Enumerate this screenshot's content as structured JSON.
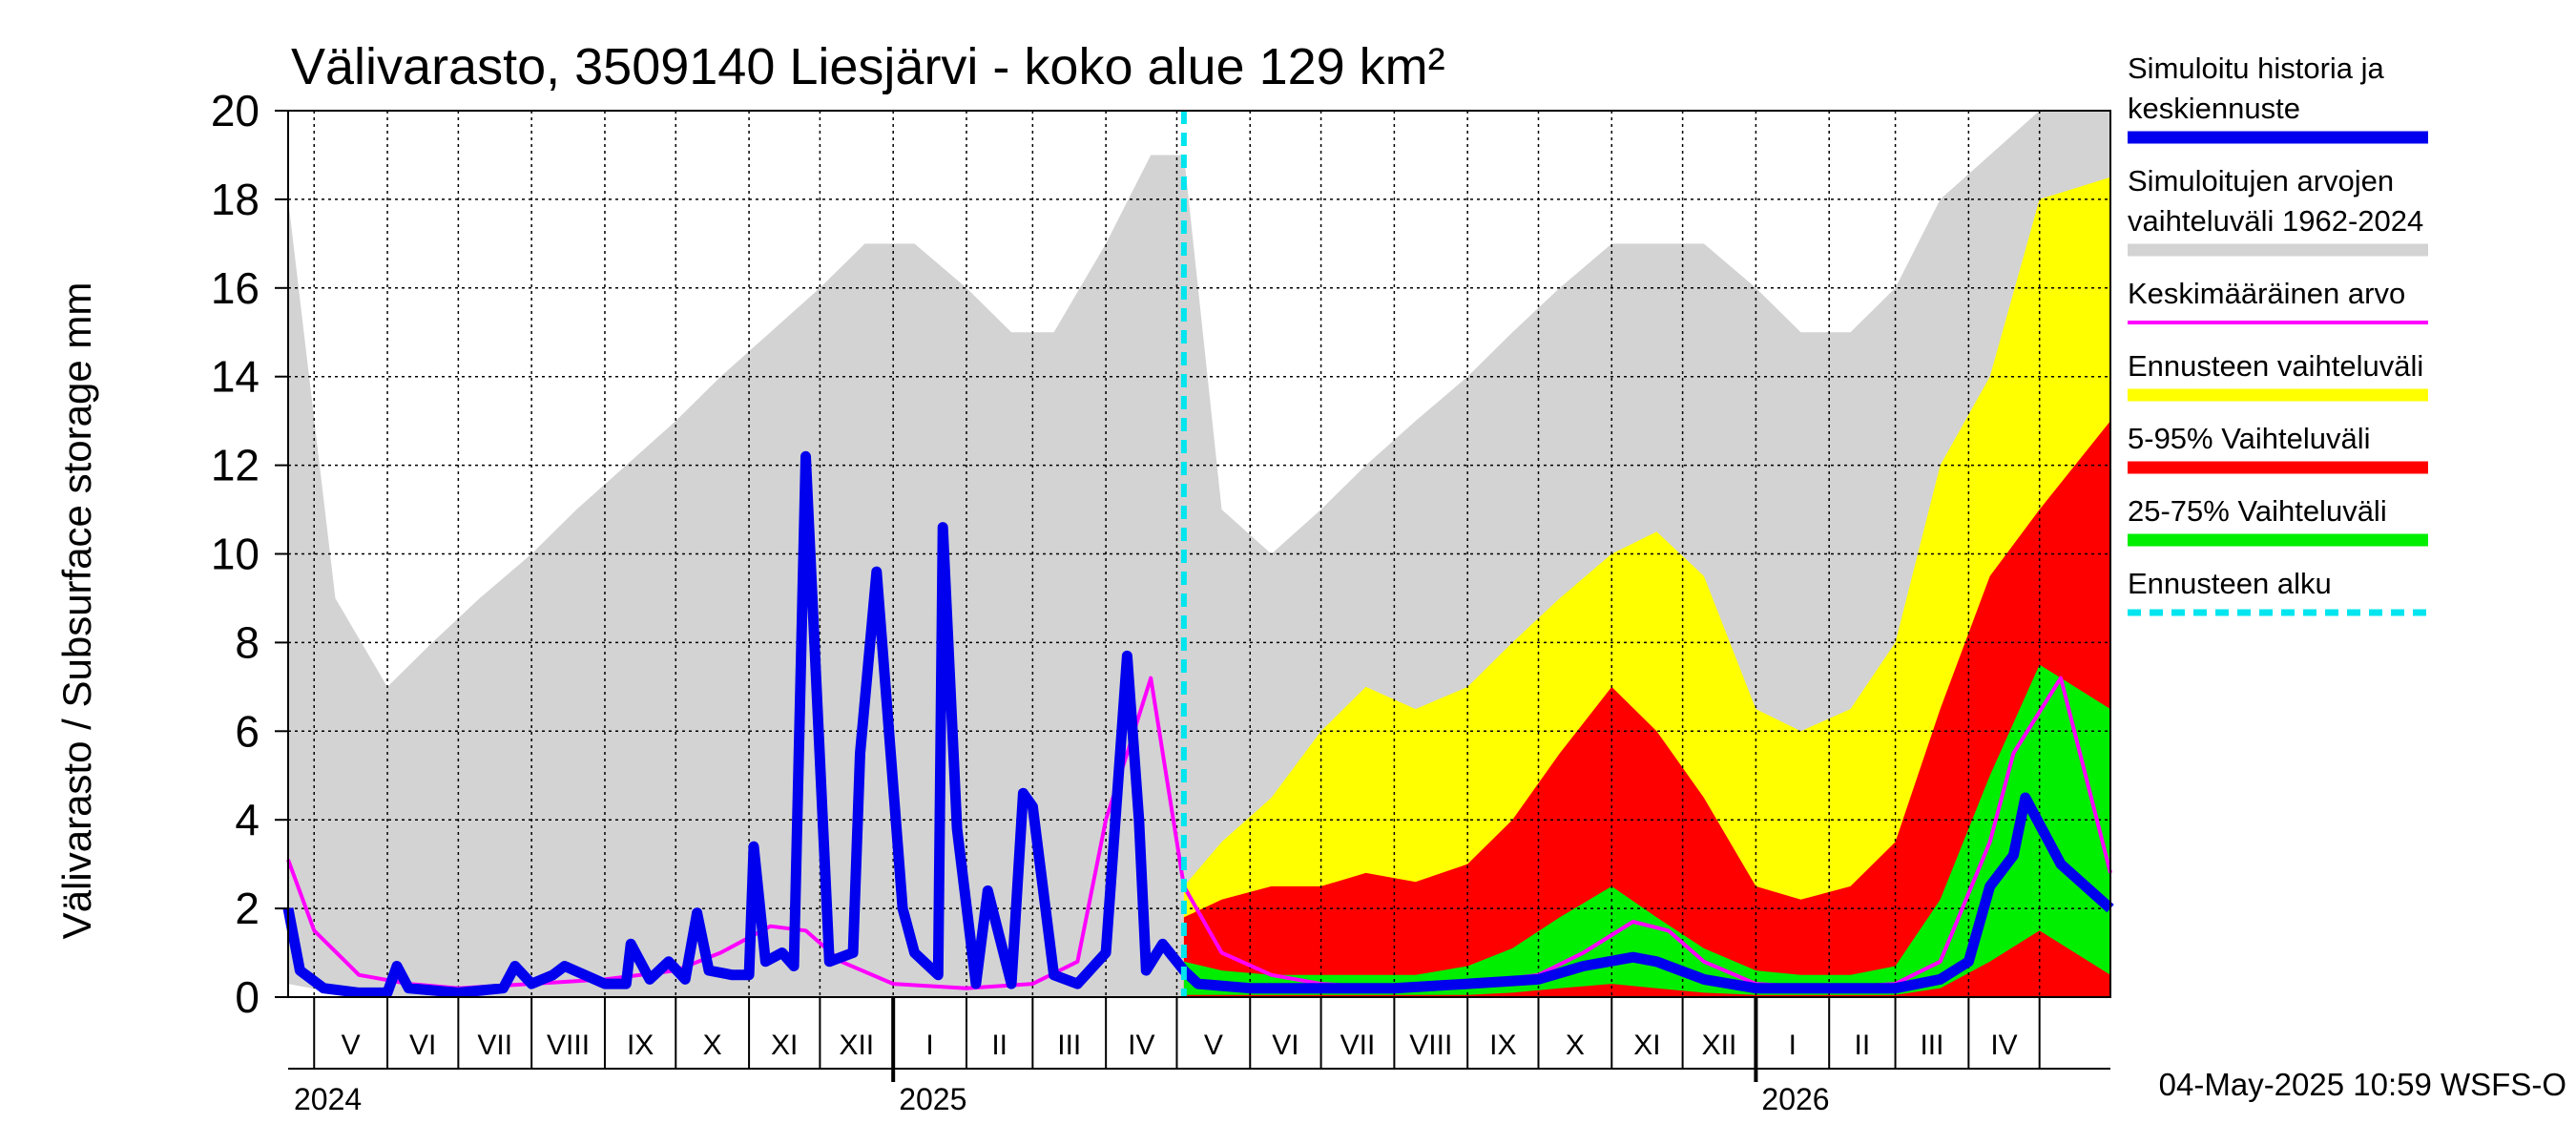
{
  "chart_data": {
    "type": "area",
    "title": "Välivarasto, 3509140 Liesjärvi - koko alue 129 km²",
    "ylabel": "Välivarasto / Subsurface storage  mm",
    "ylim": [
      0,
      20
    ],
    "yticks": [
      "0",
      "2",
      "4",
      "6",
      "8",
      "10",
      "12",
      "14",
      "16",
      "18",
      "20"
    ],
    "x_start": "2024-04-20",
    "x_end": "2026-05-31",
    "forecast_start": "2025-05-04",
    "months": [
      {
        "label": "V",
        "date": "2024-05-01"
      },
      {
        "label": "VI",
        "date": "2024-06-01"
      },
      {
        "label": "VII",
        "date": "2024-07-01"
      },
      {
        "label": "VIII",
        "date": "2024-08-01"
      },
      {
        "label": "IX",
        "date": "2024-09-01"
      },
      {
        "label": "X",
        "date": "2024-10-01"
      },
      {
        "label": "XI",
        "date": "2024-11-01"
      },
      {
        "label": "XII",
        "date": "2024-12-01"
      },
      {
        "label": "I",
        "date": "2025-01-01"
      },
      {
        "label": "II",
        "date": "2025-02-01"
      },
      {
        "label": "III",
        "date": "2025-03-01"
      },
      {
        "label": "IV",
        "date": "2025-04-01"
      },
      {
        "label": "V",
        "date": "2025-05-01"
      },
      {
        "label": "VI",
        "date": "2025-06-01"
      },
      {
        "label": "VII",
        "date": "2025-07-01"
      },
      {
        "label": "VIII",
        "date": "2025-08-01"
      },
      {
        "label": "IX",
        "date": "2025-09-01"
      },
      {
        "label": "X",
        "date": "2025-10-01"
      },
      {
        "label": "XI",
        "date": "2025-11-01"
      },
      {
        "label": "XII",
        "date": "2025-12-01"
      },
      {
        "label": "I",
        "date": "2026-01-01"
      },
      {
        "label": "II",
        "date": "2026-02-01"
      },
      {
        "label": "III",
        "date": "2026-03-01"
      },
      {
        "label": "IV",
        "date": "2026-04-01"
      },
      {
        "label": "",
        "date": "2026-05-01"
      }
    ],
    "years": [
      {
        "label": "2024",
        "date": "2024-04-20"
      },
      {
        "label": "2025",
        "date": "2025-01-01"
      },
      {
        "label": "2026",
        "date": "2026-01-01"
      }
    ],
    "series": [
      {
        "name": "Simuloitujen arvojen vaihteluväli 1962-2024",
        "kind": "band",
        "color": "#d3d3d3",
        "x": [
          "2024-04-20",
          "2024-05-10",
          "2024-06-01",
          "2024-06-20",
          "2024-07-10",
          "2024-08-01",
          "2024-08-20",
          "2024-09-10",
          "2024-10-01",
          "2024-10-20",
          "2024-11-10",
          "2024-12-01",
          "2024-12-20",
          "2025-01-10",
          "2025-02-01",
          "2025-02-20",
          "2025-03-10",
          "2025-04-01",
          "2025-04-20",
          "2025-05-04",
          "2025-05-20",
          "2025-06-10",
          "2025-07-01",
          "2025-07-20",
          "2025-08-10",
          "2025-09-01",
          "2025-09-20",
          "2025-10-10",
          "2025-11-01",
          "2025-11-20",
          "2025-12-10",
          "2026-01-01",
          "2026-01-20",
          "2026-02-10",
          "2026-03-01",
          "2026-03-20",
          "2026-04-10",
          "2026-05-01",
          "2026-05-31"
        ],
        "low": [
          0.3,
          0.1,
          0,
          0,
          0,
          0,
          0,
          0,
          0,
          0,
          0,
          0,
          0,
          0,
          0,
          0,
          0,
          0,
          0,
          0,
          0,
          0,
          0,
          0,
          0,
          0,
          0,
          0,
          0,
          0,
          0,
          0,
          0,
          0,
          0,
          0,
          0,
          0,
          0
        ],
        "high": [
          18,
          9,
          7,
          8,
          9,
          10,
          11,
          12,
          13,
          14,
          15,
          16,
          17,
          17,
          16,
          15,
          15,
          17,
          19,
          19,
          11,
          10,
          11,
          12,
          13,
          14,
          15,
          16,
          17,
          17,
          17,
          16,
          15,
          15,
          16,
          18,
          19,
          20,
          20
        ]
      },
      {
        "name": "Ennusteen vaihteluväli",
        "kind": "band",
        "color": "#ffff00",
        "x": [
          "2025-05-04",
          "2025-05-20",
          "2025-06-10",
          "2025-07-01",
          "2025-07-20",
          "2025-08-10",
          "2025-09-01",
          "2025-09-20",
          "2025-10-10",
          "2025-11-01",
          "2025-11-20",
          "2025-12-10",
          "2026-01-01",
          "2026-01-20",
          "2026-02-10",
          "2026-03-01",
          "2026-03-20",
          "2026-04-10",
          "2026-05-01",
          "2026-05-31"
        ],
        "low": [
          0,
          0,
          0,
          0,
          0,
          0,
          0,
          0,
          0,
          0,
          0,
          0,
          0,
          0,
          0,
          0,
          0,
          0,
          0,
          0
        ],
        "high": [
          2.5,
          3.5,
          4.5,
          6,
          7,
          6.5,
          7,
          8,
          9,
          10,
          10.5,
          9.5,
          6.5,
          6,
          6.5,
          8,
          12,
          14,
          18,
          18.5
        ]
      },
      {
        "name": "5-95% Vaihteluväli",
        "kind": "band",
        "color": "#ff0000",
        "x": [
          "2025-05-04",
          "2025-05-20",
          "2025-06-10",
          "2025-07-01",
          "2025-07-20",
          "2025-08-10",
          "2025-09-01",
          "2025-09-20",
          "2025-10-10",
          "2025-11-01",
          "2025-11-20",
          "2025-12-10",
          "2026-01-01",
          "2026-01-20",
          "2026-02-10",
          "2026-03-01",
          "2026-03-20",
          "2026-04-10",
          "2026-05-01",
          "2026-05-31"
        ],
        "low": [
          0,
          0,
          0,
          0,
          0,
          0,
          0,
          0,
          0,
          0,
          0,
          0,
          0,
          0,
          0,
          0,
          0,
          0,
          0,
          0
        ],
        "high": [
          1.8,
          2.2,
          2.5,
          2.5,
          2.8,
          2.6,
          3,
          4,
          5.5,
          7,
          6,
          4.5,
          2.5,
          2.2,
          2.5,
          3.5,
          6.5,
          9.5,
          11,
          13
        ]
      },
      {
        "name": "25-75% Vaihteluväli",
        "kind": "band",
        "color": "#00ee00",
        "x": [
          "2025-05-04",
          "2025-05-20",
          "2025-06-10",
          "2025-07-01",
          "2025-07-20",
          "2025-08-10",
          "2025-09-01",
          "2025-09-20",
          "2025-10-10",
          "2025-11-01",
          "2025-11-20",
          "2025-12-10",
          "2026-01-01",
          "2026-01-20",
          "2026-02-10",
          "2026-03-01",
          "2026-03-20",
          "2026-04-10",
          "2026-05-01",
          "2026-05-31"
        ],
        "low": [
          0.05,
          0.05,
          0.05,
          0.05,
          0.05,
          0.05,
          0.05,
          0.1,
          0.2,
          0.3,
          0.2,
          0.1,
          0.05,
          0.05,
          0.05,
          0.05,
          0.2,
          0.8,
          1.5,
          0.5
        ],
        "high": [
          0.8,
          0.6,
          0.5,
          0.5,
          0.5,
          0.5,
          0.7,
          1.1,
          1.8,
          2.5,
          1.8,
          1.1,
          0.6,
          0.5,
          0.5,
          0.7,
          2.2,
          5,
          7.5,
          6.5
        ]
      },
      {
        "name": "Keskimääräinen arvo",
        "kind": "line",
        "color": "#ff00ff",
        "x": [
          "2024-04-20",
          "2024-05-01",
          "2024-05-20",
          "2024-06-10",
          "2024-07-01",
          "2024-08-01",
          "2024-09-01",
          "2024-10-01",
          "2024-10-20",
          "2024-11-10",
          "2024-11-25",
          "2024-12-10",
          "2025-01-01",
          "2025-02-01",
          "2025-03-01",
          "2025-03-20",
          "2025-04-01",
          "2025-04-10",
          "2025-04-20",
          "2025-05-04",
          "2025-05-20",
          "2025-06-10",
          "2025-07-01",
          "2025-08-01",
          "2025-09-01",
          "2025-10-01",
          "2025-10-20",
          "2025-11-10",
          "2025-11-25",
          "2025-12-10",
          "2026-01-01",
          "2026-02-01",
          "2026-03-01",
          "2026-03-20",
          "2026-04-10",
          "2026-04-20",
          "2026-05-10",
          "2026-05-31"
        ],
        "y": [
          3.1,
          1.5,
          0.5,
          0.3,
          0.2,
          0.3,
          0.4,
          0.6,
          1.0,
          1.6,
          1.5,
          0.8,
          0.3,
          0.2,
          0.3,
          0.8,
          4.0,
          5.5,
          7.2,
          2.5,
          1.0,
          0.5,
          0.3,
          0.2,
          0.3,
          0.5,
          1.0,
          1.7,
          1.5,
          0.8,
          0.3,
          0.2,
          0.3,
          0.8,
          3.5,
          5.5,
          7.2,
          2.8
        ]
      },
      {
        "name": "Simuloitu historia ja keskiennuste",
        "kind": "line",
        "color": "#0000ee",
        "x": [
          "2024-04-20",
          "2024-04-25",
          "2024-05-05",
          "2024-05-20",
          "2024-06-01",
          "2024-06-05",
          "2024-06-10",
          "2024-07-01",
          "2024-07-20",
          "2024-07-25",
          "2024-08-01",
          "2024-08-10",
          "2024-08-15",
          "2024-09-01",
          "2024-09-10",
          "2024-09-12",
          "2024-09-20",
          "2024-09-28",
          "2024-10-05",
          "2024-10-10",
          "2024-10-15",
          "2024-10-25",
          "2024-11-01",
          "2024-11-03",
          "2024-11-08",
          "2024-11-15",
          "2024-11-20",
          "2024-11-25",
          "2024-12-05",
          "2024-12-15",
          "2024-12-18",
          "2024-12-25",
          "2025-01-05",
          "2025-01-10",
          "2025-01-20",
          "2025-01-22",
          "2025-01-28",
          "2025-02-05",
          "2025-02-10",
          "2025-02-20",
          "2025-02-25",
          "2025-03-01",
          "2025-03-10",
          "2025-03-20",
          "2025-04-01",
          "2025-04-10",
          "2025-04-15",
          "2025-04-18",
          "2025-04-25",
          "2025-05-04",
          "2025-05-10",
          "2025-06-01",
          "2025-07-01",
          "2025-08-01",
          "2025-09-01",
          "2025-10-01",
          "2025-10-20",
          "2025-11-10",
          "2025-11-20",
          "2025-12-10",
          "2026-01-01",
          "2026-02-01",
          "2026-03-01",
          "2026-03-20",
          "2026-04-01",
          "2026-04-10",
          "2026-04-20",
          "2026-04-25",
          "2026-05-10",
          "2026-05-31"
        ],
        "y": [
          2.0,
          0.6,
          0.2,
          0.1,
          0.1,
          0.7,
          0.2,
          0.1,
          0.2,
          0.7,
          0.3,
          0.5,
          0.7,
          0.3,
          0.3,
          1.2,
          0.4,
          0.8,
          0.4,
          1.9,
          0.6,
          0.5,
          0.5,
          3.4,
          0.8,
          1.0,
          0.7,
          12.2,
          0.8,
          1.0,
          5.5,
          9.6,
          2.0,
          1.0,
          0.5,
          10.6,
          3.8,
          0.3,
          2.4,
          0.3,
          4.6,
          4.3,
          0.5,
          0.3,
          1.0,
          7.7,
          4.0,
          0.6,
          1.2,
          0.6,
          0.3,
          0.2,
          0.2,
          0.2,
          0.3,
          0.4,
          0.7,
          0.9,
          0.8,
          0.4,
          0.2,
          0.2,
          0.2,
          0.4,
          0.8,
          2.5,
          3.2,
          4.5,
          3.0,
          2.0
        ]
      }
    ]
  },
  "legend": {
    "items": [
      {
        "label": "Simuloitu historia ja keskiennuste",
        "color": "#0000ee",
        "style": "solid"
      },
      {
        "label": "Simuloitujen arvojen vaihteluväli 1962-2024",
        "color": "#d3d3d3",
        "style": "solid"
      },
      {
        "label": "Keskimääräinen arvo",
        "color": "#ff00ff",
        "style": "thin"
      },
      {
        "label": "Ennusteen vaihteluväli",
        "color": "#ffff00",
        "style": "solid"
      },
      {
        "label": "5-95% Vaihteluväli",
        "color": "#ff0000",
        "style": "solid"
      },
      {
        "label": "25-75% Vaihteluväli",
        "color": "#00ee00",
        "style": "solid"
      },
      {
        "label": "Ennusteen alku",
        "color": "#00e5ee",
        "style": "dashed"
      }
    ]
  },
  "footer": {
    "timestamp": "04-May-2025 10:59 WSFS-O"
  }
}
